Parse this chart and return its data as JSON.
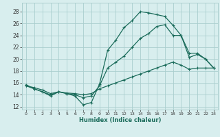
{
  "xlabel": "Humidex (Indice chaleur)",
  "ylabel": "",
  "xlim": [
    -0.5,
    23.5
  ],
  "ylim": [
    11.5,
    29.5
  ],
  "xticks": [
    0,
    1,
    2,
    3,
    4,
    5,
    6,
    7,
    8,
    9,
    10,
    11,
    12,
    13,
    14,
    15,
    16,
    17,
    18,
    19,
    20,
    21,
    22,
    23
  ],
  "yticks": [
    12,
    14,
    16,
    18,
    20,
    22,
    24,
    26,
    28
  ],
  "bg_color": "#d8eeee",
  "grid_color": "#aacece",
  "line_color": "#1a6b5a",
  "line1_y": [
    15.7,
    15.0,
    14.5,
    13.8,
    14.5,
    14.2,
    13.8,
    12.3,
    12.7,
    15.8,
    21.5,
    23.2,
    25.3,
    26.5,
    28.0,
    27.8,
    27.5,
    27.2,
    25.7,
    24.0,
    20.3,
    20.8,
    20.0,
    18.5
  ],
  "line2_y": [
    15.5,
    15.0,
    14.5,
    14.0,
    14.5,
    14.2,
    14.0,
    13.5,
    13.8,
    15.5,
    18.5,
    19.5,
    20.5,
    22.0,
    23.5,
    24.3,
    25.5,
    25.8,
    24.0,
    24.0,
    21.0,
    21.0,
    20.0,
    18.5
  ],
  "line3_y": [
    15.5,
    15.2,
    14.8,
    14.2,
    14.5,
    14.3,
    14.2,
    14.0,
    14.2,
    15.0,
    15.5,
    16.0,
    16.5,
    17.0,
    17.5,
    18.0,
    18.5,
    19.0,
    19.5,
    19.0,
    18.3,
    18.5,
    18.5,
    18.5
  ]
}
